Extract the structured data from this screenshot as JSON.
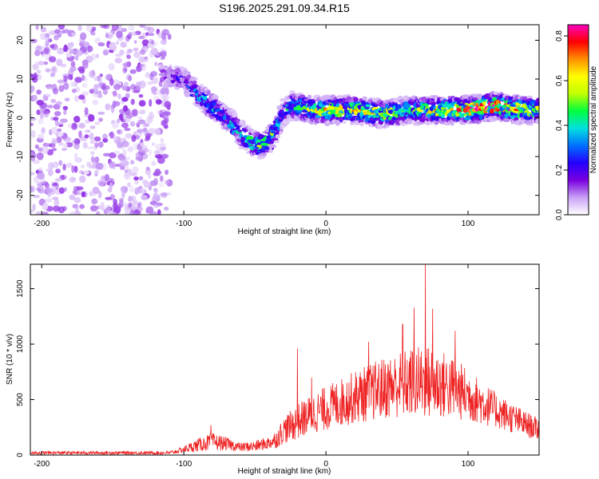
{
  "title": "S196.2025.291.09.34.R15",
  "chart_data": [
    {
      "type": "heatmap",
      "title": "S196.2025.291.09.34.R15",
      "xlabel": "Height of straight line (km)",
      "ylabel": "Frequency (Hz)",
      "xlim": [
        -208,
        150
      ],
      "ylim": [
        -25,
        24
      ],
      "xticks": [
        -200,
        -100,
        0,
        100
      ],
      "xtick_labels": [
        "-200",
        "-100",
        "0",
        "100"
      ],
      "yticks": [
        -20,
        -10,
        0,
        10,
        20
      ],
      "ytick_labels": [
        "-20",
        "-10",
        "0",
        "10",
        "20"
      ],
      "ridge": {
        "description": "Frequency of peak spectral amplitude vs height",
        "x": [
          -115,
          -100,
          -90,
          -80,
          -70,
          -60,
          -50,
          -45,
          -40,
          -35,
          -30,
          -25,
          -20,
          -10,
          0,
          20,
          40,
          60,
          80,
          100,
          120,
          140,
          150
        ],
        "y": [
          11,
          10,
          6,
          3,
          0,
          -4,
          -7,
          -7,
          -6,
          -3,
          1,
          3,
          3,
          2,
          2,
          2,
          1,
          2,
          2,
          2,
          3,
          2,
          2
        ],
        "peak_amplitude": [
          0.15,
          0.2,
          0.3,
          0.35,
          0.35,
          0.35,
          0.45,
          0.5,
          0.45,
          0.45,
          0.3,
          0.4,
          0.45,
          0.5,
          0.6,
          0.55,
          0.6,
          0.45,
          0.6,
          0.75,
          0.8,
          0.6,
          0.5
        ]
      },
      "noise_region": {
        "x_range": [
          -208,
          -110
        ],
        "y_range": [
          -25,
          24
        ],
        "level": 0.08
      },
      "colorbar": {
        "label": "Normalized spectral amplitude",
        "range": [
          0.0,
          0.85
        ],
        "ticks": [
          0.0,
          0.2,
          0.4,
          0.6,
          0.8
        ],
        "tick_labels": [
          "0.0",
          "0.2",
          "0.4",
          "0.6",
          "0.8"
        ],
        "colormap": [
          "#ffffff",
          "#c8a0f5",
          "#7a00e0",
          "#2400ff",
          "#0070ff",
          "#00e0e0",
          "#00ff40",
          "#c0ff00",
          "#ffff00",
          "#ff9000",
          "#ff0000",
          "#ff00c0"
        ]
      }
    },
    {
      "type": "line",
      "xlabel": "Height of straight line (km)",
      "ylabel": "SNR (10 * v/v)",
      "xlim": [
        -208,
        150
      ],
      "ylim": [
        0,
        1720
      ],
      "xticks": [
        -200,
        -100,
        0,
        100
      ],
      "xtick_labels": [
        "-200",
        "-100",
        "0",
        "100"
      ],
      "yticks": [
        0,
        500,
        1000,
        1500
      ],
      "ytick_labels": [
        "0",
        "500",
        "1000",
        "1500"
      ],
      "series": [
        {
          "name": "SNR",
          "color": "#ee2222",
          "envelope": {
            "x": [
              -208,
              -150,
              -110,
              -100,
              -90,
              -80,
              -70,
              -60,
              -50,
              -40,
              -35,
              -30,
              -20,
              -10,
              0,
              10,
              20,
              30,
              40,
              50,
              60,
              70,
              80,
              90,
              100,
              110,
              120,
              130,
              140,
              150
            ],
            "center": [
              20,
              20,
              20,
              50,
              90,
              120,
              100,
              70,
              80,
              110,
              140,
              220,
              300,
              370,
              420,
              470,
              520,
              560,
              600,
              630,
              650,
              660,
              640,
              600,
              540,
              470,
              400,
              340,
              280,
              230
            ],
            "spread": [
              15,
              15,
              15,
              30,
              60,
              80,
              60,
              40,
              50,
              60,
              80,
              120,
              160,
              180,
              200,
              220,
              240,
              260,
              280,
              300,
              320,
              340,
              320,
              280,
              240,
              200,
              160,
              140,
              120,
              100
            ]
          },
          "peaks": [
            {
              "x": -81,
              "y": 270
            },
            {
              "x": -20,
              "y": 960
            },
            {
              "x": -10,
              "y": 700
            },
            {
              "x": 30,
              "y": 1020
            },
            {
              "x": 54,
              "y": 1180
            },
            {
              "x": 62,
              "y": 1330
            },
            {
              "x": 70,
              "y": 1720
            },
            {
              "x": 75,
              "y": 1320
            },
            {
              "x": 91,
              "y": 1120
            }
          ]
        }
      ]
    }
  ]
}
